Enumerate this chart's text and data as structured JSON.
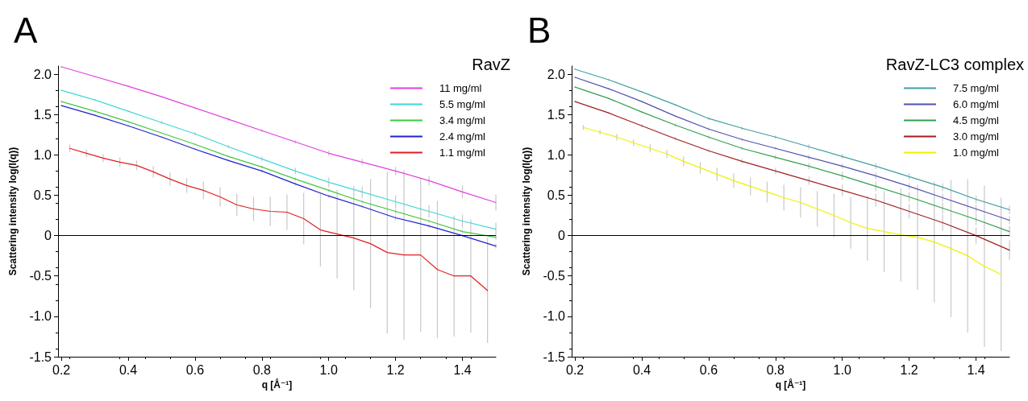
{
  "chart_data": [
    {
      "type": "line",
      "title": "A",
      "legend_title": "RavZ",
      "xlabel": "q [Å⁻¹]",
      "ylabel": "Scattering intensity log(I(q))",
      "x": [
        0.2,
        0.3,
        0.4,
        0.5,
        0.6,
        0.7,
        0.8,
        0.9,
        1.0,
        1.1,
        1.2,
        1.3,
        1.4,
        1.5
      ],
      "series": [
        {
          "name": "11 mg/ml",
          "color": "#e040e0",
          "values": [
            2.09,
            1.97,
            1.85,
            1.72,
            1.58,
            1.44,
            1.3,
            1.16,
            1.02,
            0.91,
            0.8,
            0.68,
            0.54,
            0.41
          ],
          "errors": [
            0.01,
            0.01,
            0.01,
            0.01,
            0.01,
            0.02,
            0.02,
            0.02,
            0.03,
            0.04,
            0.05,
            0.06,
            0.08,
            0.1
          ]
        },
        {
          "name": "5.5 mg/ml",
          "color": "#40d8d8",
          "values": [
            1.8,
            1.68,
            1.54,
            1.4,
            1.26,
            1.1,
            0.95,
            0.8,
            0.66,
            0.54,
            0.42,
            0.3,
            0.18,
            0.08
          ],
          "errors": [
            0.01,
            0.01,
            0.01,
            0.02,
            0.02,
            0.02,
            0.03,
            0.04,
            0.06,
            0.07,
            0.08,
            0.08,
            0.08,
            0.08
          ]
        },
        {
          "name": "3.4 mg/ml",
          "color": "#40c840",
          "values": [
            1.66,
            1.54,
            1.41,
            1.27,
            1.13,
            0.98,
            0.85,
            0.7,
            0.56,
            0.42,
            0.3,
            0.18,
            0.05,
            -0.02
          ],
          "errors": [
            0.01,
            0.01,
            0.01,
            0.01,
            0.01,
            0.01,
            0.02,
            0.02,
            0.02,
            0.02,
            0.03,
            0.02,
            0.02,
            0.03
          ]
        },
        {
          "name": "2.4 mg/ml",
          "color": "#2020d0",
          "values": [
            1.61,
            1.49,
            1.36,
            1.22,
            1.07,
            0.93,
            0.8,
            0.64,
            0.49,
            0.36,
            0.22,
            0.12,
            0.0,
            -0.13
          ],
          "errors": [
            0.01,
            0.01,
            0.01,
            0.01,
            0.01,
            0.01,
            0.02,
            0.02,
            0.02,
            0.02,
            0.03,
            0.02,
            0.02,
            0.03
          ]
        },
        {
          "name": "1.1 mg/ml",
          "color": "#e02020",
          "x": [
            0.225,
            0.275,
            0.325,
            0.375,
            0.425,
            0.475,
            0.525,
            0.575,
            0.625,
            0.675,
            0.725,
            0.775,
            0.825,
            0.875,
            0.925,
            0.975,
            1.025,
            1.075,
            1.125,
            1.175,
            1.225,
            1.275,
            1.325,
            1.375,
            1.425,
            1.475
          ],
          "values": [
            1.08,
            1.02,
            0.96,
            0.91,
            0.87,
            0.79,
            0.7,
            0.62,
            0.56,
            0.48,
            0.38,
            0.33,
            0.3,
            0.29,
            0.21,
            0.07,
            0.02,
            -0.03,
            -0.1,
            -0.21,
            -0.24,
            -0.24,
            -0.42,
            -0.5,
            -0.5,
            -0.68
          ],
          "errors": [
            0.05,
            0.05,
            0.05,
            0.06,
            0.06,
            0.07,
            0.08,
            0.09,
            0.11,
            0.12,
            0.14,
            0.15,
            0.18,
            0.22,
            0.32,
            0.45,
            0.55,
            0.65,
            0.8,
            1.0,
            1.05,
            0.95,
            0.85,
            0.75,
            0.7,
            0.65
          ]
        }
      ],
      "xlim": [
        0.19,
        1.5
      ],
      "xticks": [
        0.2,
        0.4,
        0.6,
        0.8,
        {
          "value": 1,
          "label": "1.0"
        },
        1.2,
        1.4
      ],
      "ylim": [
        -1.5,
        2.1
      ],
      "yticks": [
        -1.5,
        {
          "value": -1,
          "label": "-1.0"
        },
        -0.5,
        0,
        0.5,
        {
          "value": 1,
          "label": "1.0"
        },
        1.5,
        {
          "value": 2,
          "label": "2.0"
        }
      ],
      "ref_lines": [
        {
          "axis": "y",
          "value": 0,
          "color": "#000000"
        }
      ],
      "grid": false,
      "legend": "top right",
      "marker": "none",
      "line_style": "solid"
    },
    {
      "type": "line",
      "title": "B",
      "legend_title": "RavZ-LC3 complex",
      "xlabel": "q [Å⁻¹]",
      "ylabel": "Scattering intensity log(I(q))",
      "x": [
        0.2,
        0.3,
        0.4,
        0.5,
        0.6,
        0.7,
        0.8,
        0.9,
        1.0,
        1.1,
        1.2,
        1.3,
        1.4,
        1.5
      ],
      "series": [
        {
          "name": "7.5 mg/ml",
          "color": "#40a0a0",
          "values": [
            2.06,
            1.93,
            1.78,
            1.62,
            1.45,
            1.33,
            1.22,
            1.1,
            0.98,
            0.86,
            0.73,
            0.6,
            0.45,
            0.32
          ],
          "errors": [
            0.01,
            0.01,
            0.01,
            0.01,
            0.02,
            0.02,
            0.02,
            0.03,
            0.03,
            0.04,
            0.04,
            0.05,
            0.05,
            0.05
          ]
        },
        {
          "name": "6.0 mg/ml",
          "color": "#5050b0",
          "values": [
            1.96,
            1.82,
            1.66,
            1.48,
            1.32,
            1.19,
            1.08,
            0.97,
            0.86,
            0.74,
            0.61,
            0.47,
            0.33,
            0.19
          ],
          "errors": [
            0.01,
            0.01,
            0.01,
            0.01,
            0.02,
            0.02,
            0.02,
            0.03,
            0.03,
            0.04,
            0.04,
            0.05,
            0.05,
            0.05
          ]
        },
        {
          "name": "4.5 mg/ml",
          "color": "#30a050",
          "values": [
            1.84,
            1.7,
            1.53,
            1.37,
            1.22,
            1.08,
            0.97,
            0.86,
            0.74,
            0.61,
            0.48,
            0.34,
            0.2,
            0.05
          ],
          "errors": [
            0.01,
            0.01,
            0.01,
            0.02,
            0.02,
            0.02,
            0.03,
            0.04,
            0.05,
            0.06,
            0.06,
            0.07,
            0.07,
            0.07
          ]
        },
        {
          "name": "3.0 mg/ml",
          "color": "#a02020",
          "values": [
            1.66,
            1.52,
            1.36,
            1.2,
            1.05,
            0.92,
            0.8,
            0.68,
            0.56,
            0.44,
            0.3,
            0.16,
            0.0,
            -0.18
          ],
          "errors": [
            0.01,
            0.01,
            0.02,
            0.02,
            0.02,
            0.03,
            0.04,
            0.05,
            0.07,
            0.08,
            0.09,
            0.1,
            0.1,
            0.12
          ]
        },
        {
          "name": "1.0 mg/ml",
          "color": "#f0f000",
          "x": [
            0.225,
            0.275,
            0.325,
            0.375,
            0.425,
            0.475,
            0.525,
            0.575,
            0.625,
            0.675,
            0.725,
            0.775,
            0.825,
            0.875,
            0.925,
            0.975,
            1.025,
            1.075,
            1.125,
            1.175,
            1.225,
            1.275,
            1.325,
            1.375,
            1.425,
            1.475
          ],
          "values": [
            1.34,
            1.28,
            1.22,
            1.15,
            1.08,
            1.01,
            0.92,
            0.84,
            0.76,
            0.68,
            0.61,
            0.54,
            0.47,
            0.41,
            0.33,
            0.25,
            0.16,
            0.09,
            0.05,
            0.01,
            -0.02,
            -0.08,
            -0.16,
            -0.25,
            -0.38,
            -0.48
          ],
          "errors": [
            0.03,
            0.03,
            0.04,
            0.04,
            0.05,
            0.05,
            0.06,
            0.07,
            0.08,
            0.09,
            0.11,
            0.13,
            0.16,
            0.19,
            0.22,
            0.27,
            0.32,
            0.4,
            0.5,
            0.58,
            0.65,
            0.75,
            0.85,
            0.95,
            1.0,
            0.95
          ]
        }
      ],
      "xlim": [
        0.19,
        1.5
      ],
      "xticks": [
        0.2,
        0.4,
        0.6,
        0.8,
        {
          "value": 1,
          "label": "1.0"
        },
        1.2,
        1.4
      ],
      "ylim": [
        -1.5,
        2.1
      ],
      "yticks": [
        -1.5,
        {
          "value": -1,
          "label": "-1.0"
        },
        -0.5,
        0,
        0.5,
        {
          "value": 1,
          "label": "1.0"
        },
        1.5,
        {
          "value": 2,
          "label": "2.0"
        }
      ],
      "ref_lines": [
        {
          "axis": "y",
          "value": 0,
          "color": "#000000"
        }
      ],
      "grid": false,
      "legend": "top right",
      "marker": "none",
      "line_style": "solid"
    }
  ]
}
